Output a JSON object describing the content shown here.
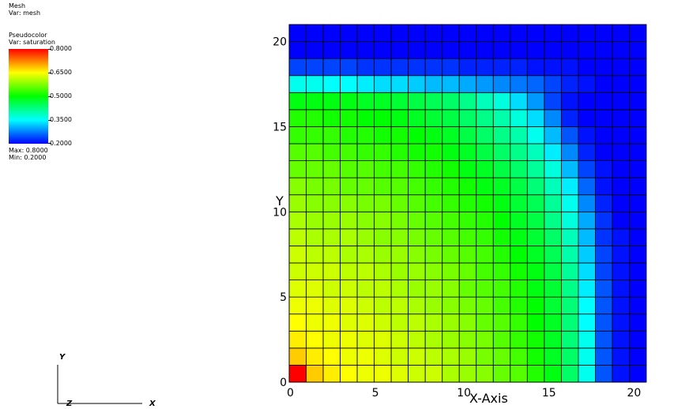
{
  "legend": {
    "mesh_title": "Mesh",
    "mesh_var": "Var: mesh",
    "pc_title": "Pseudocolor",
    "pc_var": "Var: saturation",
    "ticks": [
      "0.8000",
      "0.6500",
      "0.5000",
      "0.3500",
      "0.2000"
    ],
    "max_label": "Max:  0.8000",
    "min_label": "Min:  0.2000"
  },
  "colors": {
    "low": "#0000ff",
    "high": "#ff0000"
  },
  "triad": {
    "y": "Y",
    "z": "Z",
    "x": "X"
  },
  "chart_data": {
    "type": "heatmap",
    "xlabel": "X-Axis",
    "ylabel": "Y",
    "xlim": [
      0,
      21
    ],
    "ylim": [
      0,
      21
    ],
    "x_ticks": [
      "0",
      "5",
      "10",
      "15",
      "20"
    ],
    "y_ticks": [
      "0",
      "5",
      "10",
      "15",
      "20"
    ],
    "x_tick_values": [
      0,
      5,
      10,
      15,
      20
    ],
    "y_tick_values": [
      0,
      5,
      10,
      15,
      20
    ],
    "colorbar_range": [
      0.2,
      0.8
    ],
    "cells_shape": [
      21,
      21
    ],
    "values_note_rows": "row 0 = bottom (y 0-1), column 0 = left (x 0-1)",
    "values": [
      [
        0.8,
        0.68,
        0.66,
        0.65,
        0.64,
        0.64,
        0.63,
        0.62,
        0.62,
        0.6,
        0.59,
        0.58,
        0.56,
        0.55,
        0.52,
        0.49,
        0.44,
        0.36,
        0.25,
        0.21,
        0.2
      ],
      [
        0.68,
        0.66,
        0.65,
        0.64,
        0.64,
        0.63,
        0.62,
        0.62,
        0.61,
        0.6,
        0.59,
        0.57,
        0.56,
        0.54,
        0.51,
        0.48,
        0.44,
        0.36,
        0.25,
        0.21,
        0.2
      ],
      [
        0.66,
        0.65,
        0.64,
        0.64,
        0.63,
        0.63,
        0.62,
        0.61,
        0.6,
        0.59,
        0.58,
        0.57,
        0.55,
        0.53,
        0.51,
        0.48,
        0.43,
        0.36,
        0.25,
        0.21,
        0.2
      ],
      [
        0.65,
        0.64,
        0.64,
        0.63,
        0.63,
        0.62,
        0.61,
        0.61,
        0.6,
        0.59,
        0.58,
        0.56,
        0.55,
        0.53,
        0.5,
        0.48,
        0.43,
        0.35,
        0.25,
        0.21,
        0.2
      ],
      [
        0.64,
        0.64,
        0.63,
        0.63,
        0.62,
        0.61,
        0.61,
        0.6,
        0.59,
        0.58,
        0.57,
        0.56,
        0.54,
        0.52,
        0.5,
        0.47,
        0.43,
        0.35,
        0.25,
        0.21,
        0.2
      ],
      [
        0.63,
        0.63,
        0.62,
        0.62,
        0.61,
        0.61,
        0.6,
        0.59,
        0.59,
        0.58,
        0.56,
        0.55,
        0.54,
        0.52,
        0.49,
        0.47,
        0.42,
        0.34,
        0.25,
        0.21,
        0.2
      ],
      [
        0.62,
        0.62,
        0.62,
        0.61,
        0.61,
        0.6,
        0.59,
        0.59,
        0.58,
        0.57,
        0.56,
        0.54,
        0.53,
        0.51,
        0.49,
        0.46,
        0.41,
        0.33,
        0.24,
        0.21,
        0.2
      ],
      [
        0.62,
        0.61,
        0.61,
        0.6,
        0.6,
        0.59,
        0.59,
        0.58,
        0.57,
        0.56,
        0.55,
        0.54,
        0.52,
        0.5,
        0.48,
        0.45,
        0.4,
        0.32,
        0.24,
        0.21,
        0.2
      ],
      [
        0.61,
        0.6,
        0.6,
        0.6,
        0.59,
        0.58,
        0.58,
        0.57,
        0.56,
        0.55,
        0.54,
        0.53,
        0.51,
        0.49,
        0.47,
        0.44,
        0.39,
        0.31,
        0.23,
        0.21,
        0.2
      ],
      [
        0.6,
        0.59,
        0.59,
        0.59,
        0.58,
        0.58,
        0.57,
        0.56,
        0.55,
        0.54,
        0.53,
        0.52,
        0.5,
        0.48,
        0.46,
        0.42,
        0.37,
        0.3,
        0.23,
        0.2,
        0.2
      ],
      [
        0.59,
        0.58,
        0.58,
        0.58,
        0.57,
        0.57,
        0.56,
        0.55,
        0.54,
        0.53,
        0.52,
        0.51,
        0.49,
        0.47,
        0.45,
        0.41,
        0.36,
        0.28,
        0.22,
        0.2,
        0.2
      ],
      [
        0.58,
        0.57,
        0.57,
        0.56,
        0.56,
        0.55,
        0.55,
        0.54,
        0.53,
        0.52,
        0.51,
        0.49,
        0.48,
        0.46,
        0.43,
        0.39,
        0.34,
        0.26,
        0.21,
        0.2,
        0.2
      ],
      [
        0.56,
        0.56,
        0.56,
        0.55,
        0.55,
        0.54,
        0.54,
        0.53,
        0.52,
        0.51,
        0.49,
        0.48,
        0.46,
        0.44,
        0.41,
        0.37,
        0.31,
        0.24,
        0.21,
        0.2,
        0.2
      ],
      [
        0.55,
        0.55,
        0.54,
        0.54,
        0.53,
        0.53,
        0.52,
        0.51,
        0.51,
        0.49,
        0.48,
        0.46,
        0.44,
        0.42,
        0.39,
        0.34,
        0.28,
        0.22,
        0.2,
        0.2,
        0.2
      ],
      [
        0.53,
        0.53,
        0.53,
        0.52,
        0.52,
        0.51,
        0.51,
        0.5,
        0.49,
        0.48,
        0.46,
        0.44,
        0.42,
        0.4,
        0.36,
        0.31,
        0.25,
        0.21,
        0.2,
        0.2,
        0.2
      ],
      [
        0.52,
        0.52,
        0.51,
        0.51,
        0.5,
        0.5,
        0.49,
        0.48,
        0.47,
        0.46,
        0.44,
        0.42,
        0.4,
        0.37,
        0.33,
        0.28,
        0.22,
        0.2,
        0.2,
        0.2,
        0.2
      ],
      [
        0.49,
        0.49,
        0.49,
        0.49,
        0.48,
        0.48,
        0.47,
        0.46,
        0.45,
        0.44,
        0.42,
        0.39,
        0.37,
        0.33,
        0.29,
        0.24,
        0.21,
        0.2,
        0.2,
        0.2,
        0.2
      ],
      [
        0.36,
        0.36,
        0.35,
        0.35,
        0.34,
        0.33,
        0.33,
        0.32,
        0.31,
        0.31,
        0.3,
        0.29,
        0.28,
        0.27,
        0.26,
        0.24,
        0.22,
        0.21,
        0.2,
        0.2,
        0.2
      ],
      [
        0.24,
        0.24,
        0.24,
        0.24,
        0.23,
        0.23,
        0.23,
        0.23,
        0.23,
        0.23,
        0.22,
        0.22,
        0.22,
        0.22,
        0.21,
        0.21,
        0.21,
        0.2,
        0.2,
        0.2,
        0.2
      ],
      [
        0.2,
        0.2,
        0.2,
        0.2,
        0.2,
        0.2,
        0.2,
        0.2,
        0.2,
        0.2,
        0.2,
        0.2,
        0.2,
        0.2,
        0.2,
        0.2,
        0.2,
        0.2,
        0.2,
        0.2,
        0.2
      ],
      [
        0.2,
        0.2,
        0.2,
        0.2,
        0.2,
        0.2,
        0.2,
        0.2,
        0.2,
        0.2,
        0.2,
        0.2,
        0.2,
        0.2,
        0.2,
        0.2,
        0.2,
        0.2,
        0.2,
        0.2,
        0.2
      ]
    ]
  }
}
